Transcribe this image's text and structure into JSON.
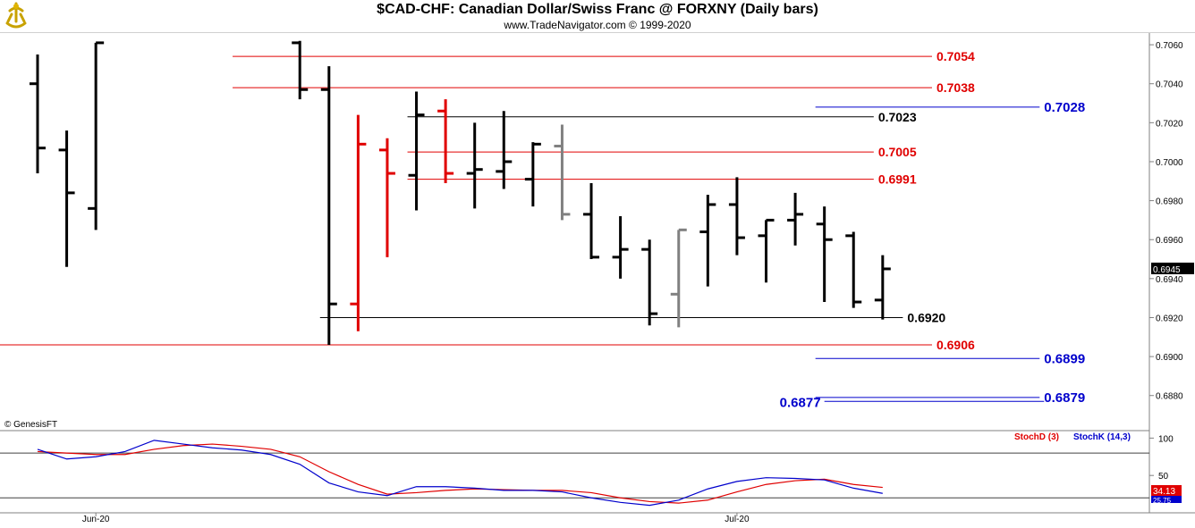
{
  "header": {
    "title": "$CAD-CHF:  Canadian Dollar/Swiss Franc @ FORXNY  (Daily bars)",
    "subtitle": "www.TradeNavigator.com © 1999-2020",
    "copyright": "© GenesisFT"
  },
  "colors": {
    "up_bar": "#000000",
    "down_bar": "#e00000",
    "neutral_bar": "#808080",
    "red_level": "#e00000",
    "blue_level": "#0000cc",
    "black_level": "#000000",
    "stoch_d": "#e00000",
    "stoch_k": "#0000cc"
  },
  "chart_data": [
    {
      "type": "ohlc",
      "title": "$CAD-CHF:  Canadian Dollar/Swiss Franc @ FORXNY  (Daily bars)",
      "ylim": [
        0.6862,
        0.7066
      ],
      "y_ticks": [
        "0.7060",
        "0.7040",
        "0.7020",
        "0.7000",
        "0.6980",
        "0.6960",
        "0.6940",
        "0.6920",
        "0.6900",
        "0.6880"
      ],
      "y_tick_values": [
        0.706,
        0.704,
        0.702,
        0.7,
        0.698,
        0.696,
        0.694,
        0.692,
        0.69,
        0.688
      ],
      "last_price": "0.6945",
      "x_labels": [
        {
          "index": 2,
          "text": "Jun-20"
        },
        {
          "index": 24,
          "text": "Jul-20"
        }
      ],
      "bars": [
        {
          "o": 0.704,
          "h": 0.7055,
          "l": 0.6994,
          "c": 0.7007,
          "color": "black"
        },
        {
          "o": 0.7006,
          "h": 0.7016,
          "l": 0.6946,
          "c": 0.6984,
          "color": "black"
        },
        {
          "o": 0.6976,
          "h": 0.7061,
          "l": 0.6965,
          "c": 0.7061,
          "color": "black"
        },
        {
          "o": null,
          "h": null,
          "l": null,
          "c": null,
          "color": "black"
        },
        {
          "o": null,
          "h": null,
          "l": null,
          "c": null,
          "color": "black"
        },
        {
          "o": null,
          "h": null,
          "l": null,
          "c": null,
          "color": "black"
        },
        {
          "o": null,
          "h": null,
          "l": null,
          "c": null,
          "color": "black"
        },
        {
          "o": null,
          "h": null,
          "l": null,
          "c": null,
          "color": "black"
        },
        {
          "o": null,
          "h": null,
          "l": null,
          "c": null,
          "color": "black"
        },
        {
          "o": 0.7061,
          "h": 0.7062,
          "l": 0.7032,
          "c": 0.7037,
          "color": "black"
        },
        {
          "o": 0.7037,
          "h": 0.7049,
          "l": 0.6906,
          "c": 0.6927,
          "color": "black"
        },
        {
          "o": 0.6927,
          "h": 0.7024,
          "l": 0.6913,
          "c": 0.7009,
          "color": "red"
        },
        {
          "o": 0.7006,
          "h": 0.7012,
          "l": 0.6951,
          "c": 0.6994,
          "color": "red"
        },
        {
          "o": 0.6993,
          "h": 0.7036,
          "l": 0.6975,
          "c": 0.7024,
          "color": "black"
        },
        {
          "o": 0.7026,
          "h": 0.7032,
          "l": 0.6989,
          "c": 0.6994,
          "color": "red"
        },
        {
          "o": 0.6994,
          "h": 0.702,
          "l": 0.6976,
          "c": 0.6996,
          "color": "black"
        },
        {
          "o": 0.6995,
          "h": 0.7026,
          "l": 0.6986,
          "c": 0.7,
          "color": "black"
        },
        {
          "o": 0.6991,
          "h": 0.701,
          "l": 0.6977,
          "c": 0.7009,
          "color": "black"
        },
        {
          "o": 0.7008,
          "h": 0.7019,
          "l": 0.697,
          "c": 0.6973,
          "color": "gray"
        },
        {
          "o": 0.6973,
          "h": 0.6989,
          "l": 0.695,
          "c": 0.6951,
          "color": "black"
        },
        {
          "o": 0.6951,
          "h": 0.6972,
          "l": 0.694,
          "c": 0.6955,
          "color": "black"
        },
        {
          "o": 0.6955,
          "h": 0.696,
          "l": 0.6916,
          "c": 0.6922,
          "color": "black"
        },
        {
          "o": 0.6932,
          "h": 0.6965,
          "l": 0.6915,
          "c": 0.6965,
          "color": "gray"
        },
        {
          "o": 0.6964,
          "h": 0.6983,
          "l": 0.6936,
          "c": 0.6978,
          "color": "black"
        },
        {
          "o": 0.6978,
          "h": 0.6992,
          "l": 0.6952,
          "c": 0.6961,
          "color": "black"
        },
        {
          "o": 0.6962,
          "h": 0.697,
          "l": 0.6938,
          "c": 0.697,
          "color": "black"
        },
        {
          "o": 0.697,
          "h": 0.6984,
          "l": 0.6957,
          "c": 0.6973,
          "color": "black"
        },
        {
          "o": 0.6968,
          "h": 0.6977,
          "l": 0.6928,
          "c": 0.696,
          "color": "black"
        },
        {
          "o": 0.6962,
          "h": 0.6964,
          "l": 0.6925,
          "c": 0.6928,
          "color": "black"
        },
        {
          "o": 0.6929,
          "h": 0.6952,
          "l": 0.6919,
          "c": 0.6945,
          "color": "black"
        }
      ],
      "levels": [
        {
          "value": 0.7054,
          "label": "0.7054",
          "color": "red",
          "from": 7,
          "to": 31
        },
        {
          "value": 0.7038,
          "label": "0.7038",
          "color": "red",
          "from": 7,
          "to": 31
        },
        {
          "value": 0.7028,
          "label": "0.7028",
          "color": "blue",
          "from": 27,
          "to": 35
        },
        {
          "value": 0.7023,
          "label": "0.7023",
          "color": "black",
          "from": 13,
          "to": 29
        },
        {
          "value": 0.7005,
          "label": "0.7005",
          "color": "red",
          "from": 13,
          "to": 29
        },
        {
          "value": 0.6991,
          "label": "0.6991",
          "color": "red",
          "from": 13,
          "to": 29
        },
        {
          "value": 0.692,
          "label": "0.6920",
          "color": "black",
          "from": 10,
          "to": 30
        },
        {
          "value": 0.6906,
          "label": "0.6906",
          "color": "red",
          "from": -1,
          "to": 31
        },
        {
          "value": 0.6899,
          "label": "0.6899",
          "color": "blue",
          "from": 27,
          "to": 35
        },
        {
          "value": 0.6879,
          "label": "0.6879",
          "color": "blue",
          "from": 27,
          "to": 35
        },
        {
          "value": 0.6877,
          "label": "0.6877",
          "color": "blue",
          "from": 27,
          "to": 35,
          "label_left": true
        }
      ]
    },
    {
      "type": "line",
      "legend": [
        {
          "name": "StochD (3)",
          "color": "red"
        },
        {
          "name": "StochK (14,3)",
          "color": "blue"
        }
      ],
      "ylim": [
        0,
        110
      ],
      "y_ticks": [
        "100",
        "50"
      ],
      "y_tick_values": [
        100,
        50
      ],
      "reference_levels": [
        80,
        20
      ],
      "last_d": "34.13",
      "last_k": "25.75",
      "series": [
        {
          "name": "StochD (3)",
          "values": [
            82,
            80,
            78,
            78,
            85,
            90,
            92,
            89,
            85,
            75,
            55,
            38,
            25,
            27,
            30,
            32,
            31,
            30,
            30,
            27,
            20,
            15,
            13,
            17,
            28,
            38,
            43,
            45,
            38,
            34
          ]
        },
        {
          "name": "StochK (14,3)",
          "values": [
            85,
            72,
            75,
            82,
            97,
            92,
            87,
            84,
            78,
            65,
            40,
            28,
            23,
            35,
            35,
            33,
            30,
            30,
            28,
            20,
            14,
            10,
            17,
            32,
            42,
            47,
            46,
            44,
            33,
            26
          ]
        }
      ]
    }
  ]
}
